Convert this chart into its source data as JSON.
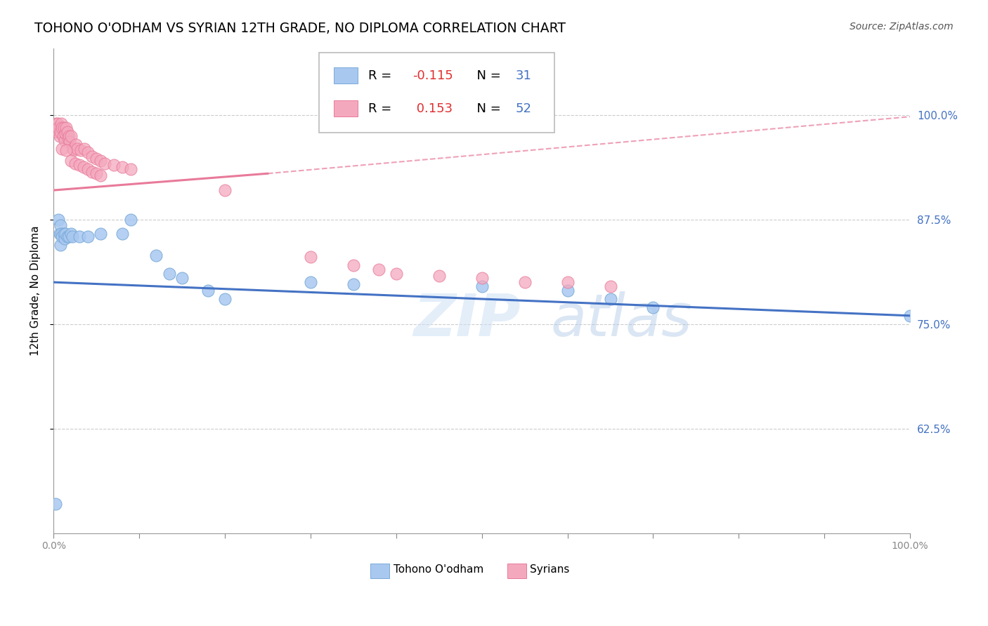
{
  "title": "TOHONO O'ODHAM VS SYRIAN 12TH GRADE, NO DIPLOMA CORRELATION CHART",
  "source": "Source: ZipAtlas.com",
  "ylabel": "12th Grade, No Diploma",
  "ylabel_ticks": [
    "100.0%",
    "87.5%",
    "75.0%",
    "62.5%"
  ],
  "ylabel_tick_vals": [
    1.0,
    0.875,
    0.75,
    0.625
  ],
  "xmin": 0.0,
  "xmax": 1.0,
  "ymin": 0.5,
  "ymax": 1.08,
  "legend_blue_r": "-0.115",
  "legend_blue_n": "31",
  "legend_pink_r": "0.153",
  "legend_pink_n": "52",
  "watermark_zip": "ZIP",
  "watermark_atlas": "atlas",
  "blue_color": "#a8c8f0",
  "pink_color": "#f4a8be",
  "blue_edge": "#7aaad8",
  "pink_edge": "#e87a9a",
  "blue_line_color": "#4472c4",
  "pink_line_color": "#e87a9a",
  "blue_points": [
    [
      0.002,
      0.535
    ],
    [
      0.006,
      0.875
    ],
    [
      0.007,
      0.858
    ],
    [
      0.008,
      0.868
    ],
    [
      0.008,
      0.845
    ],
    [
      0.009,
      0.858
    ],
    [
      0.01,
      0.855
    ],
    [
      0.012,
      0.858
    ],
    [
      0.013,
      0.852
    ],
    [
      0.014,
      0.858
    ],
    [
      0.016,
      0.855
    ],
    [
      0.018,
      0.855
    ],
    [
      0.02,
      0.858
    ],
    [
      0.022,
      0.855
    ],
    [
      0.03,
      0.855
    ],
    [
      0.04,
      0.855
    ],
    [
      0.055,
      0.858
    ],
    [
      0.08,
      0.858
    ],
    [
      0.09,
      0.875
    ],
    [
      0.12,
      0.832
    ],
    [
      0.135,
      0.81
    ],
    [
      0.15,
      0.805
    ],
    [
      0.18,
      0.79
    ],
    [
      0.2,
      0.78
    ],
    [
      0.3,
      0.8
    ],
    [
      0.35,
      0.798
    ],
    [
      0.5,
      0.795
    ],
    [
      0.6,
      0.79
    ],
    [
      0.65,
      0.78
    ],
    [
      0.7,
      0.77
    ],
    [
      1.0,
      0.76
    ]
  ],
  "pink_points": [
    [
      0.003,
      0.99
    ],
    [
      0.004,
      0.98
    ],
    [
      0.005,
      0.99
    ],
    [
      0.006,
      0.985
    ],
    [
      0.007,
      0.975
    ],
    [
      0.008,
      0.98
    ],
    [
      0.009,
      0.99
    ],
    [
      0.01,
      0.985
    ],
    [
      0.011,
      0.975
    ],
    [
      0.012,
      0.985
    ],
    [
      0.013,
      0.97
    ],
    [
      0.014,
      0.978
    ],
    [
      0.015,
      0.985
    ],
    [
      0.016,
      0.98
    ],
    [
      0.017,
      0.972
    ],
    [
      0.018,
      0.975
    ],
    [
      0.019,
      0.968
    ],
    [
      0.02,
      0.975
    ],
    [
      0.022,
      0.96
    ],
    [
      0.024,
      0.958
    ],
    [
      0.026,
      0.965
    ],
    [
      0.028,
      0.96
    ],
    [
      0.032,
      0.958
    ],
    [
      0.036,
      0.96
    ],
    [
      0.04,
      0.955
    ],
    [
      0.045,
      0.95
    ],
    [
      0.05,
      0.948
    ],
    [
      0.055,
      0.945
    ],
    [
      0.06,
      0.942
    ],
    [
      0.07,
      0.94
    ],
    [
      0.08,
      0.938
    ],
    [
      0.09,
      0.935
    ],
    [
      0.01,
      0.96
    ],
    [
      0.015,
      0.958
    ],
    [
      0.02,
      0.945
    ],
    [
      0.025,
      0.942
    ],
    [
      0.03,
      0.94
    ],
    [
      0.035,
      0.938
    ],
    [
      0.04,
      0.935
    ],
    [
      0.045,
      0.932
    ],
    [
      0.05,
      0.93
    ],
    [
      0.055,
      0.928
    ],
    [
      0.2,
      0.91
    ],
    [
      0.3,
      0.83
    ],
    [
      0.35,
      0.82
    ],
    [
      0.38,
      0.815
    ],
    [
      0.4,
      0.81
    ],
    [
      0.45,
      0.808
    ],
    [
      0.5,
      0.805
    ],
    [
      0.55,
      0.8
    ],
    [
      0.6,
      0.8
    ],
    [
      0.65,
      0.795
    ]
  ],
  "blue_trend": [
    0.0,
    1.0,
    0.8,
    0.76
  ],
  "pink_trend_solid": [
    0.0,
    0.25,
    0.91,
    0.93
  ],
  "pink_trend_dashed": [
    0.25,
    1.0,
    0.93,
    0.998
  ]
}
